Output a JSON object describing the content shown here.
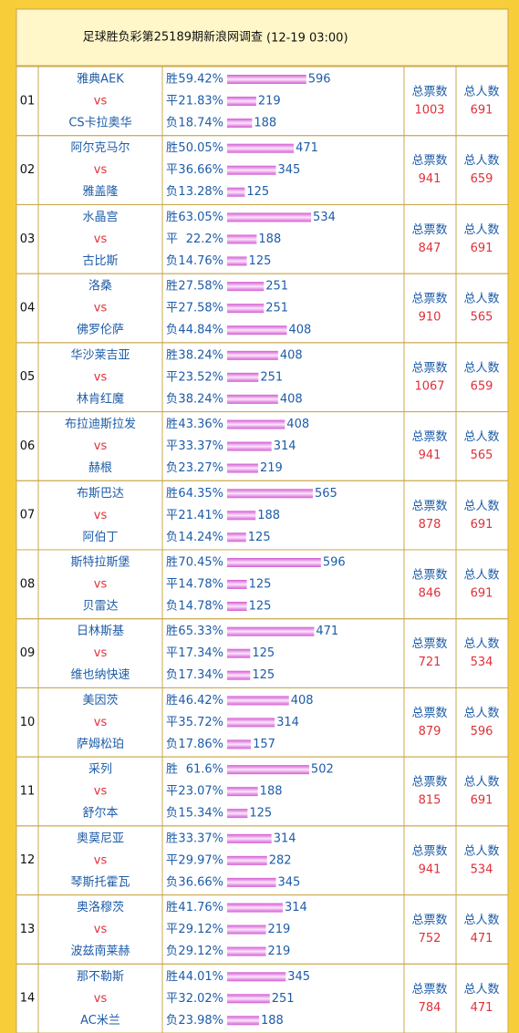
{
  "header": {
    "title": "足球胜负彩第25189期新浪网调查",
    "time": "(12-19 03:00)"
  },
  "labels": {
    "outcomes": [
      "胜",
      "平",
      "负"
    ],
    "vs": "vs",
    "total_votes": "总票数",
    "total_people": "总人数"
  },
  "rows": [
    {
      "no": "01",
      "home": "雅典AEK",
      "away": "CS卡拉奥华",
      "results": [
        {
          "pct": 59.42,
          "pct_label": "59.42%",
          "votes": 596
        },
        {
          "pct": 21.83,
          "pct_label": "21.83%",
          "votes": 219
        },
        {
          "pct": 18.74,
          "pct_label": "18.74%",
          "votes": 188
        }
      ],
      "total_votes": 1003,
      "total_people": 691
    },
    {
      "no": "02",
      "home": "阿尔克马尔",
      "away": "雅盖隆",
      "results": [
        {
          "pct": 50.05,
          "pct_label": "50.05%",
          "votes": 471
        },
        {
          "pct": 36.66,
          "pct_label": "36.66%",
          "votes": 345
        },
        {
          "pct": 13.28,
          "pct_label": "13.28%",
          "votes": 125
        }
      ],
      "total_votes": 941,
      "total_people": 659
    },
    {
      "no": "03",
      "home": "水晶宫",
      "away": "古比斯",
      "results": [
        {
          "pct": 63.05,
          "pct_label": "63.05%",
          "votes": 534
        },
        {
          "pct": 22.2,
          "pct_label": "22.2%",
          "votes": 188
        },
        {
          "pct": 14.76,
          "pct_label": "14.76%",
          "votes": 125
        }
      ],
      "total_votes": 847,
      "total_people": 691
    },
    {
      "no": "04",
      "home": "洛桑",
      "away": "佛罗伦萨",
      "results": [
        {
          "pct": 27.58,
          "pct_label": "27.58%",
          "votes": 251
        },
        {
          "pct": 27.58,
          "pct_label": "27.58%",
          "votes": 251
        },
        {
          "pct": 44.84,
          "pct_label": "44.84%",
          "votes": 408
        }
      ],
      "total_votes": 910,
      "total_people": 565
    },
    {
      "no": "05",
      "home": "华沙莱吉亚",
      "away": "林肯红魔",
      "results": [
        {
          "pct": 38.24,
          "pct_label": "38.24%",
          "votes": 408
        },
        {
          "pct": 23.52,
          "pct_label": "23.52%",
          "votes": 251
        },
        {
          "pct": 38.24,
          "pct_label": "38.24%",
          "votes": 408
        }
      ],
      "total_votes": 1067,
      "total_people": 659
    },
    {
      "no": "06",
      "home": "布拉迪斯拉发",
      "away": "赫根",
      "results": [
        {
          "pct": 43.36,
          "pct_label": "43.36%",
          "votes": 408
        },
        {
          "pct": 33.37,
          "pct_label": "33.37%",
          "votes": 314
        },
        {
          "pct": 23.27,
          "pct_label": "23.27%",
          "votes": 219
        }
      ],
      "total_votes": 941,
      "total_people": 565
    },
    {
      "no": "07",
      "home": "布斯巴达",
      "away": "阿伯丁",
      "results": [
        {
          "pct": 64.35,
          "pct_label": "64.35%",
          "votes": 565
        },
        {
          "pct": 21.41,
          "pct_label": "21.41%",
          "votes": 188
        },
        {
          "pct": 14.24,
          "pct_label": "14.24%",
          "votes": 125
        }
      ],
      "total_votes": 878,
      "total_people": 691
    },
    {
      "no": "08",
      "home": "斯特拉斯堡",
      "away": "贝雷达",
      "results": [
        {
          "pct": 70.45,
          "pct_label": "70.45%",
          "votes": 596
        },
        {
          "pct": 14.78,
          "pct_label": "14.78%",
          "votes": 125
        },
        {
          "pct": 14.78,
          "pct_label": "14.78%",
          "votes": 125
        }
      ],
      "total_votes": 846,
      "total_people": 691
    },
    {
      "no": "09",
      "home": "日林斯基",
      "away": "维也纳快速",
      "results": [
        {
          "pct": 65.33,
          "pct_label": "65.33%",
          "votes": 471
        },
        {
          "pct": 17.34,
          "pct_label": "17.34%",
          "votes": 125
        },
        {
          "pct": 17.34,
          "pct_label": "17.34%",
          "votes": 125
        }
      ],
      "total_votes": 721,
      "total_people": 534
    },
    {
      "no": "10",
      "home": "美因茨",
      "away": "萨姆松珀",
      "results": [
        {
          "pct": 46.42,
          "pct_label": "46.42%",
          "votes": 408
        },
        {
          "pct": 35.72,
          "pct_label": "35.72%",
          "votes": 314
        },
        {
          "pct": 17.86,
          "pct_label": "17.86%",
          "votes": 157
        }
      ],
      "total_votes": 879,
      "total_people": 596
    },
    {
      "no": "11",
      "home": "采列",
      "away": "舒尔本",
      "results": [
        {
          "pct": 61.6,
          "pct_label": "61.6%",
          "votes": 502
        },
        {
          "pct": 23.07,
          "pct_label": "23.07%",
          "votes": 188
        },
        {
          "pct": 15.34,
          "pct_label": "15.34%",
          "votes": 125
        }
      ],
      "total_votes": 815,
      "total_people": 691
    },
    {
      "no": "12",
      "home": "奥莫尼亚",
      "away": "琴斯托霍瓦",
      "results": [
        {
          "pct": 33.37,
          "pct_label": "33.37%",
          "votes": 314
        },
        {
          "pct": 29.97,
          "pct_label": "29.97%",
          "votes": 282
        },
        {
          "pct": 36.66,
          "pct_label": "36.66%",
          "votes": 345
        }
      ],
      "total_votes": 941,
      "total_people": 534
    },
    {
      "no": "13",
      "home": "奥洛穆茨",
      "away": "波兹南莱赫",
      "results": [
        {
          "pct": 41.76,
          "pct_label": "41.76%",
          "votes": 314
        },
        {
          "pct": 29.12,
          "pct_label": "29.12%",
          "votes": 219
        },
        {
          "pct": 29.12,
          "pct_label": "29.12%",
          "votes": 219
        }
      ],
      "total_votes": 752,
      "total_people": 471
    },
    {
      "no": "14",
      "home": "那不勒斯",
      "away": "AC米兰",
      "results": [
        {
          "pct": 44.01,
          "pct_label": "44.01%",
          "votes": 345
        },
        {
          "pct": 32.02,
          "pct_label": "32.02%",
          "votes": 251
        },
        {
          "pct": 23.98,
          "pct_label": "23.98%",
          "votes": 188
        }
      ],
      "total_votes": 784,
      "total_people": 471
    }
  ]
}
